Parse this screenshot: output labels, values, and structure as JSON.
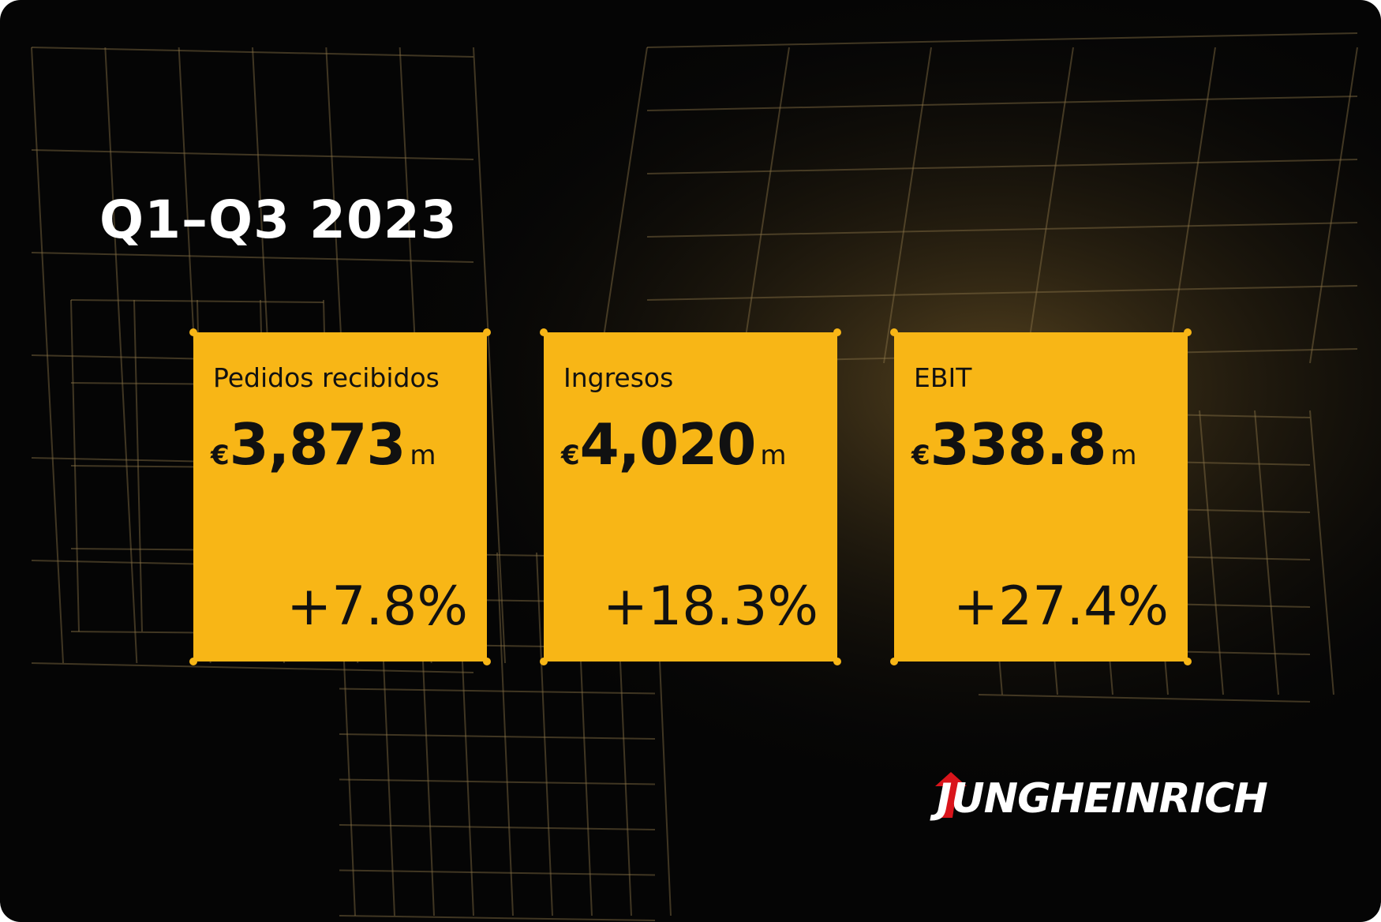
{
  "header": {
    "title": "Q1–Q3 2023"
  },
  "cards": [
    {
      "label": "Pedidos recibidos",
      "currency": "€",
      "value": "3,873",
      "unit": "m",
      "change": "+7.8%"
    },
    {
      "label": "Ingresos",
      "currency": "€",
      "value": "4,020",
      "unit": "m",
      "change": "+18.3%"
    },
    {
      "label": "EBIT",
      "currency": "€",
      "value": "338.8",
      "unit": "m",
      "change": "+27.4%"
    }
  ],
  "brand": {
    "name": "JUNGHEINRICH"
  }
}
